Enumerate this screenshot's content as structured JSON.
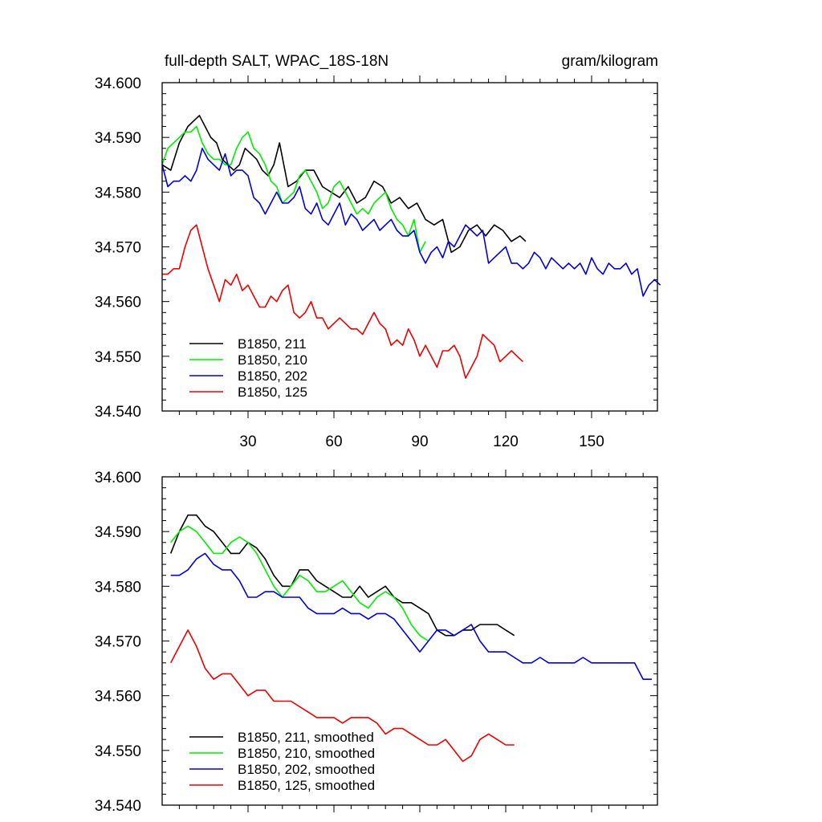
{
  "colors": {
    "black": "#000000",
    "green": "#00ee00",
    "blue": "#0000dd",
    "red": "#ee0000"
  },
  "chart_data": [
    {
      "type": "line",
      "title": "full-depth SALT, WPAC_18S-18N",
      "units": "gram/kilogram",
      "xlabel": "",
      "ylabel": "",
      "xlim": [
        0,
        173
      ],
      "ylim": [
        34.54,
        34.6
      ],
      "xticks": [
        30,
        60,
        90,
        120,
        150
      ],
      "xtick_labels": [
        "30",
        "60",
        "90",
        "120",
        "150"
      ],
      "yticks": [
        34.54,
        34.55,
        34.56,
        34.57,
        34.58,
        34.59,
        34.6
      ],
      "ytick_labels": [
        "34.540",
        "34.550",
        "34.560",
        "34.570",
        "34.580",
        "34.590",
        "34.600"
      ],
      "grid": false,
      "legend_position": "bottom-left",
      "series": [
        {
          "name": "B1850, 211",
          "color": "#000000",
          "x": [
            0,
            3,
            6,
            9,
            11,
            13,
            15,
            17,
            19,
            21,
            23,
            25,
            27,
            29,
            31,
            33,
            35,
            37,
            39,
            41,
            44,
            47,
            50,
            53,
            56,
            59,
            62,
            65,
            68,
            71,
            74,
            77,
            80,
            83,
            86,
            89,
            92,
            95,
            98,
            101,
            104,
            107,
            110,
            113,
            116,
            119,
            122,
            125,
            127
          ],
          "y": [
            34.585,
            34.584,
            34.589,
            34.592,
            34.593,
            34.594,
            34.592,
            34.59,
            34.589,
            34.586,
            34.585,
            34.584,
            34.585,
            34.588,
            34.587,
            34.586,
            34.584,
            34.583,
            34.585,
            34.589,
            34.581,
            34.582,
            34.584,
            34.584,
            34.581,
            34.58,
            34.579,
            34.581,
            34.578,
            34.579,
            34.582,
            34.581,
            34.578,
            34.579,
            34.577,
            34.578,
            34.575,
            34.574,
            34.575,
            34.569,
            34.57,
            34.573,
            34.574,
            34.572,
            34.574,
            34.573,
            34.571,
            34.572,
            34.571
          ]
        },
        {
          "name": "B1850, 210",
          "color": "#00ee00",
          "x": [
            0,
            2,
            4,
            6,
            8,
            10,
            12,
            14,
            16,
            18,
            20,
            22,
            24,
            26,
            28,
            30,
            32,
            34,
            36,
            38,
            40,
            42,
            44,
            46,
            48,
            50,
            52,
            54,
            56,
            58,
            60,
            62,
            64,
            66,
            68,
            70,
            72,
            74,
            76,
            78,
            80,
            82,
            84,
            86,
            88,
            90,
            92
          ],
          "y": [
            34.585,
            34.588,
            34.589,
            34.59,
            34.591,
            34.591,
            34.592,
            34.589,
            34.587,
            34.586,
            34.586,
            34.585,
            34.585,
            34.588,
            34.59,
            34.591,
            34.588,
            34.587,
            34.585,
            34.582,
            34.581,
            34.578,
            34.579,
            34.58,
            34.583,
            34.584,
            34.582,
            34.58,
            34.577,
            34.578,
            34.581,
            34.582,
            34.58,
            34.578,
            34.576,
            34.577,
            34.576,
            34.578,
            34.579,
            34.58,
            34.577,
            34.575,
            34.574,
            34.572,
            34.575,
            34.569,
            34.571
          ]
        },
        {
          "name": "B1850, 202",
          "color": "#0000dd",
          "x": [
            0,
            2,
            4,
            6,
            8,
            10,
            12,
            14,
            16,
            18,
            20,
            22,
            24,
            26,
            28,
            30,
            32,
            34,
            36,
            38,
            40,
            42,
            44,
            46,
            48,
            50,
            52,
            54,
            56,
            58,
            60,
            62,
            64,
            66,
            68,
            70,
            72,
            74,
            76,
            78,
            80,
            82,
            84,
            86,
            88,
            90,
            92,
            94,
            96,
            98,
            100,
            102,
            104,
            106,
            108,
            110,
            112,
            114,
            116,
            118,
            120,
            122,
            124,
            126,
            128,
            130,
            132,
            134,
            136,
            138,
            140,
            142,
            144,
            146,
            148,
            150,
            152,
            154,
            156,
            158,
            160,
            162,
            164,
            166,
            168,
            170,
            172,
            174
          ],
          "y": [
            34.585,
            34.581,
            34.582,
            34.582,
            34.583,
            34.582,
            34.584,
            34.588,
            34.586,
            34.585,
            34.584,
            34.587,
            34.583,
            34.584,
            34.584,
            34.583,
            34.579,
            34.578,
            34.576,
            34.578,
            34.58,
            34.578,
            34.578,
            34.579,
            34.581,
            34.577,
            34.576,
            34.578,
            34.575,
            34.574,
            34.576,
            34.578,
            34.574,
            34.576,
            34.575,
            34.573,
            34.574,
            34.575,
            34.573,
            34.574,
            34.575,
            34.573,
            34.572,
            34.572,
            34.573,
            34.569,
            34.567,
            34.569,
            34.57,
            34.568,
            34.571,
            34.57,
            34.572,
            34.574,
            34.573,
            34.572,
            34.573,
            34.567,
            34.568,
            34.569,
            34.57,
            34.567,
            34.567,
            34.566,
            34.567,
            34.569,
            34.568,
            34.566,
            34.568,
            34.567,
            34.566,
            34.567,
            34.566,
            34.567,
            34.565,
            34.568,
            34.566,
            34.565,
            34.567,
            34.566,
            34.566,
            34.567,
            34.565,
            34.566,
            34.561,
            34.563,
            34.564,
            34.563
          ]
        },
        {
          "name": "B1850, 125",
          "color": "#ee0000",
          "x": [
            0,
            2,
            4,
            6,
            8,
            10,
            12,
            14,
            16,
            18,
            20,
            22,
            24,
            26,
            28,
            30,
            32,
            34,
            36,
            38,
            40,
            42,
            44,
            46,
            48,
            50,
            52,
            54,
            56,
            58,
            60,
            62,
            64,
            66,
            68,
            70,
            72,
            74,
            76,
            78,
            80,
            82,
            84,
            86,
            88,
            90,
            92,
            94,
            96,
            98,
            100,
            102,
            104,
            106,
            108,
            110,
            112,
            114,
            116,
            118,
            120,
            122,
            124,
            126
          ],
          "y": [
            34.565,
            34.565,
            34.566,
            34.566,
            34.57,
            34.573,
            34.574,
            34.57,
            34.566,
            34.563,
            34.56,
            34.564,
            34.563,
            34.565,
            34.562,
            34.563,
            34.561,
            34.559,
            34.559,
            34.561,
            34.56,
            34.562,
            34.563,
            34.558,
            34.557,
            34.558,
            34.56,
            34.557,
            34.557,
            34.555,
            34.556,
            34.557,
            34.556,
            34.555,
            34.555,
            34.554,
            34.556,
            34.558,
            34.556,
            34.555,
            34.552,
            34.553,
            34.552,
            34.555,
            34.553,
            34.55,
            34.552,
            34.55,
            34.548,
            34.551,
            34.551,
            34.552,
            34.55,
            34.546,
            34.548,
            34.55,
            34.554,
            34.553,
            34.552,
            34.549,
            34.55,
            34.551,
            34.55,
            34.549
          ]
        }
      ]
    },
    {
      "type": "line",
      "title": "",
      "units": "",
      "xlabel": "",
      "ylabel": "",
      "xlim": [
        0,
        173
      ],
      "ylim": [
        34.54,
        34.6
      ],
      "xticks": [
        30,
        60,
        90,
        120,
        150
      ],
      "xtick_labels": [],
      "yticks": [
        34.54,
        34.55,
        34.56,
        34.57,
        34.58,
        34.59,
        34.6
      ],
      "ytick_labels": [
        "34.540",
        "34.550",
        "34.560",
        "34.570",
        "34.580",
        "34.590",
        "34.600"
      ],
      "grid": false,
      "legend_position": "bottom-left",
      "series": [
        {
          "name": "B1850, 211, smoothed",
          "color": "#000000",
          "x": [
            3,
            6,
            9,
            12,
            15,
            18,
            21,
            24,
            27,
            30,
            33,
            36,
            39,
            42,
            45,
            48,
            51,
            54,
            57,
            60,
            63,
            66,
            69,
            72,
            75,
            78,
            81,
            84,
            87,
            90,
            93,
            96,
            99,
            102,
            105,
            108,
            111,
            114,
            117,
            120,
            123
          ],
          "y": [
            34.586,
            34.59,
            34.593,
            34.593,
            34.591,
            34.59,
            34.588,
            34.586,
            34.586,
            34.588,
            34.587,
            34.585,
            34.582,
            34.58,
            34.58,
            34.583,
            34.583,
            34.581,
            34.58,
            34.579,
            34.578,
            34.578,
            34.58,
            34.578,
            34.579,
            34.58,
            34.578,
            34.577,
            34.577,
            34.576,
            34.575,
            34.572,
            34.571,
            34.571,
            34.572,
            34.572,
            34.573,
            34.573,
            34.573,
            34.572,
            34.571
          ]
        },
        {
          "name": "B1850, 210, smoothed",
          "color": "#00ee00",
          "x": [
            3,
            6,
            9,
            12,
            15,
            18,
            21,
            24,
            27,
            30,
            33,
            36,
            39,
            42,
            45,
            48,
            51,
            54,
            57,
            60,
            63,
            66,
            69,
            72,
            75,
            78,
            81,
            84,
            87,
            90,
            93
          ],
          "y": [
            34.588,
            34.59,
            34.591,
            34.59,
            34.588,
            34.586,
            34.586,
            34.588,
            34.589,
            34.588,
            34.586,
            34.583,
            34.58,
            34.578,
            34.58,
            34.582,
            34.581,
            34.579,
            34.579,
            34.58,
            34.581,
            34.579,
            34.577,
            34.576,
            34.578,
            34.579,
            34.578,
            34.576,
            34.573,
            34.571,
            34.57
          ]
        },
        {
          "name": "B1850, 202, smoothed",
          "color": "#0000dd",
          "x": [
            3,
            6,
            9,
            12,
            15,
            18,
            21,
            24,
            27,
            30,
            33,
            36,
            39,
            42,
            45,
            48,
            51,
            54,
            57,
            60,
            63,
            66,
            69,
            72,
            75,
            78,
            81,
            84,
            87,
            90,
            93,
            96,
            99,
            102,
            105,
            108,
            111,
            114,
            117,
            120,
            123,
            126,
            129,
            132,
            135,
            138,
            141,
            144,
            147,
            150,
            153,
            156,
            159,
            162,
            165,
            168,
            171
          ],
          "y": [
            34.582,
            34.582,
            34.583,
            34.585,
            34.586,
            34.584,
            34.583,
            34.583,
            34.581,
            34.578,
            34.578,
            34.579,
            34.579,
            34.578,
            34.578,
            34.578,
            34.576,
            34.575,
            34.575,
            34.575,
            34.576,
            34.575,
            34.575,
            34.574,
            34.575,
            34.575,
            34.574,
            34.572,
            34.57,
            34.568,
            34.57,
            34.572,
            34.572,
            34.571,
            34.572,
            34.573,
            34.57,
            34.568,
            34.568,
            34.568,
            34.567,
            34.566,
            34.566,
            34.567,
            34.566,
            34.566,
            34.566,
            34.566,
            34.567,
            34.566,
            34.566,
            34.566,
            34.566,
            34.566,
            34.566,
            34.563,
            34.563
          ]
        },
        {
          "name": "B1850, 125, smoothed",
          "color": "#ee0000",
          "x": [
            3,
            6,
            9,
            12,
            15,
            18,
            21,
            24,
            27,
            30,
            33,
            36,
            39,
            42,
            45,
            48,
            51,
            54,
            57,
            60,
            63,
            66,
            69,
            72,
            75,
            78,
            81,
            84,
            87,
            90,
            93,
            96,
            99,
            102,
            105,
            108,
            111,
            114,
            117,
            120,
            123
          ],
          "y": [
            34.566,
            34.569,
            34.572,
            34.569,
            34.565,
            34.563,
            34.564,
            34.564,
            34.562,
            34.56,
            34.561,
            34.561,
            34.559,
            34.559,
            34.559,
            34.558,
            34.557,
            34.556,
            34.556,
            34.556,
            34.555,
            34.556,
            34.556,
            34.556,
            34.555,
            34.553,
            34.554,
            34.554,
            34.553,
            34.552,
            34.551,
            34.551,
            34.552,
            34.55,
            34.548,
            34.549,
            34.552,
            34.553,
            34.552,
            34.551,
            34.551
          ]
        }
      ]
    }
  ]
}
